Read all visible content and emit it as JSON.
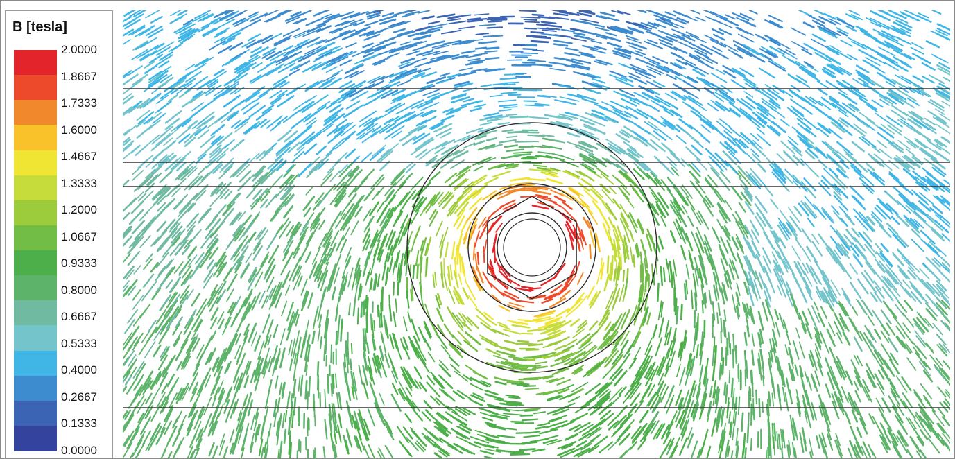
{
  "legend": {
    "title": "B [tesla]",
    "ticks": [
      "2.0000",
      "1.8667",
      "1.7333",
      "1.6000",
      "1.4667",
      "1.3333",
      "1.2000",
      "1.0667",
      "0.9333",
      "0.8000",
      "0.6667",
      "0.5333",
      "0.4000",
      "0.2667",
      "0.1333",
      "0.0000"
    ],
    "colors": [
      "#e3252b",
      "#ec4a2a",
      "#f2882c",
      "#f9c12a",
      "#f1e533",
      "#c6dc3a",
      "#9ccb3c",
      "#72bd45",
      "#4daf49",
      "#5db36a",
      "#6fbaa0",
      "#74c4cc",
      "#3fb6e6",
      "#3d8ccf",
      "#3b64b5",
      "#34449e"
    ]
  },
  "chart_data": {
    "type": "heatmap",
    "title": "B [tesla]",
    "colorbar_min": 0.0,
    "colorbar_max": 2.0,
    "colorbar_ticks": [
      2.0,
      1.8667,
      1.7333,
      1.6,
      1.4667,
      1.3333,
      1.2,
      1.0667,
      0.9333,
      0.8,
      0.6667,
      0.5333,
      0.4,
      0.2667,
      0.1333,
      0.0
    ],
    "field": "magnetic flux density vector plot around circular conductor"
  }
}
